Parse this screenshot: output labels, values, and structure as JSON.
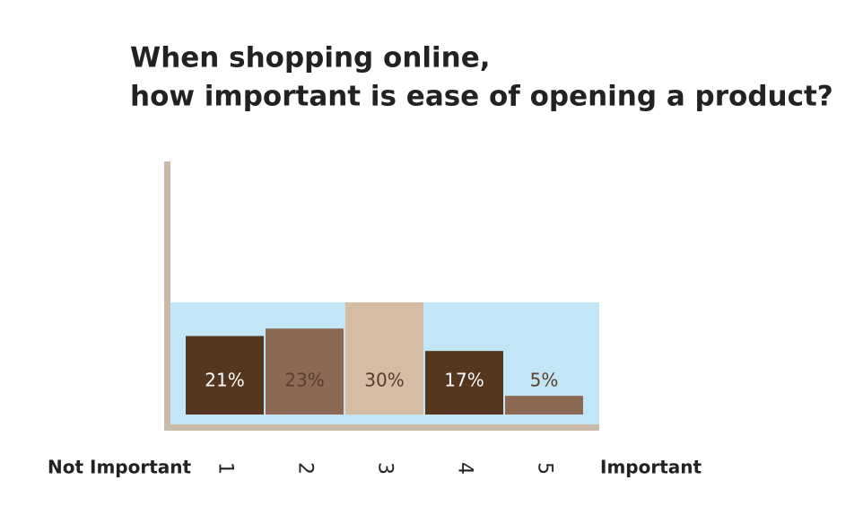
{
  "chart_data": {
    "type": "bar",
    "title": [
      "When shopping online,",
      "how important is ease of opening a product?"
    ],
    "categories": [
      "1",
      "2",
      "3",
      "4",
      "5"
    ],
    "values": [
      21,
      23,
      30,
      17,
      5
    ],
    "value_labels": [
      "21%",
      "23%",
      "30%",
      "17%",
      "5%"
    ],
    "colors": [
      "#55361f",
      "#8b6954",
      "#d4bca5",
      "#55361f",
      "#8b6954"
    ],
    "x_low_label": "Not Important",
    "x_high_label": "Important"
  }
}
